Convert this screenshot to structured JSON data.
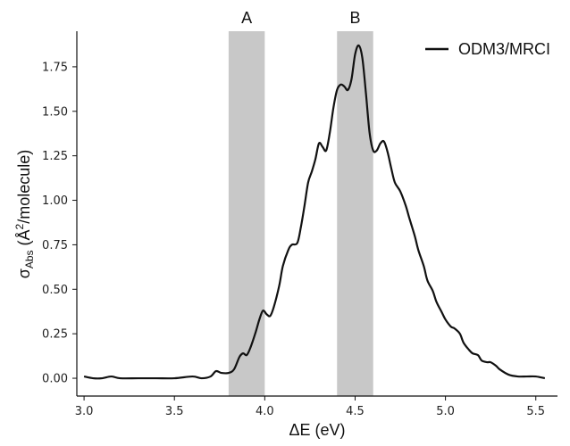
{
  "chart_data": {
    "type": "line",
    "xlabel": "ΔE (eV)",
    "ylabel_main": "σ",
    "ylabel_sub": "Abs",
    "ylabel_rest": " (Å",
    "ylabel_sup": "2",
    "ylabel_end": "/molecule)",
    "xlim": [
      2.96,
      5.62
    ],
    "ylim": [
      -0.1,
      1.95
    ],
    "xticks": [
      "3.0",
      "3.5",
      "4.0",
      "4.5",
      "5.0",
      "5.5"
    ],
    "yticks": [
      "0.00",
      "0.25",
      "0.50",
      "0.75",
      "1.00",
      "1.25",
      "1.50",
      "1.75"
    ],
    "grid": false,
    "legend_position": "top-right",
    "shaded_bands": [
      {
        "label": "A",
        "x_range": [
          3.8,
          4.0
        ],
        "color": "#c8c8c8"
      },
      {
        "label": "B",
        "x_range": [
          4.4,
          4.6
        ],
        "color": "#c8c8c8"
      }
    ],
    "series": [
      {
        "name": "ODM3/MRCI",
        "color": "#111111",
        "x": [
          3.0,
          3.05,
          3.1,
          3.15,
          3.2,
          3.3,
          3.4,
          3.5,
          3.6,
          3.65,
          3.7,
          3.73,
          3.76,
          3.8,
          3.83,
          3.86,
          3.88,
          3.9,
          3.92,
          3.95,
          3.97,
          3.99,
          4.01,
          4.03,
          4.05,
          4.08,
          4.1,
          4.13,
          4.15,
          4.18,
          4.2,
          4.22,
          4.24,
          4.26,
          4.28,
          4.3,
          4.32,
          4.34,
          4.36,
          4.38,
          4.4,
          4.42,
          4.44,
          4.46,
          4.48,
          4.5,
          4.52,
          4.54,
          4.56,
          4.58,
          4.6,
          4.62,
          4.64,
          4.66,
          4.68,
          4.7,
          4.72,
          4.75,
          4.78,
          4.8,
          4.83,
          4.85,
          4.88,
          4.9,
          4.93,
          4.95,
          4.98,
          5.0,
          5.03,
          5.05,
          5.08,
          5.1,
          5.13,
          5.15,
          5.18,
          5.2,
          5.23,
          5.25,
          5.28,
          5.3,
          5.35,
          5.4,
          5.45,
          5.5,
          5.55
        ],
        "y": [
          0.01,
          0.0,
          0.0,
          0.01,
          0.0,
          0.0,
          0.0,
          0.0,
          0.01,
          0.0,
          0.01,
          0.04,
          0.03,
          0.03,
          0.05,
          0.12,
          0.14,
          0.13,
          0.17,
          0.26,
          0.33,
          0.38,
          0.36,
          0.35,
          0.4,
          0.52,
          0.63,
          0.72,
          0.75,
          0.76,
          0.85,
          0.97,
          1.1,
          1.16,
          1.23,
          1.32,
          1.3,
          1.28,
          1.38,
          1.52,
          1.62,
          1.65,
          1.64,
          1.62,
          1.68,
          1.82,
          1.87,
          1.8,
          1.6,
          1.38,
          1.28,
          1.28,
          1.32,
          1.33,
          1.27,
          1.18,
          1.1,
          1.05,
          0.97,
          0.9,
          0.8,
          0.72,
          0.63,
          0.55,
          0.49,
          0.43,
          0.37,
          0.33,
          0.29,
          0.28,
          0.25,
          0.2,
          0.16,
          0.14,
          0.13,
          0.1,
          0.09,
          0.09,
          0.07,
          0.05,
          0.02,
          0.01,
          0.01,
          0.01,
          0.0
        ]
      }
    ]
  }
}
